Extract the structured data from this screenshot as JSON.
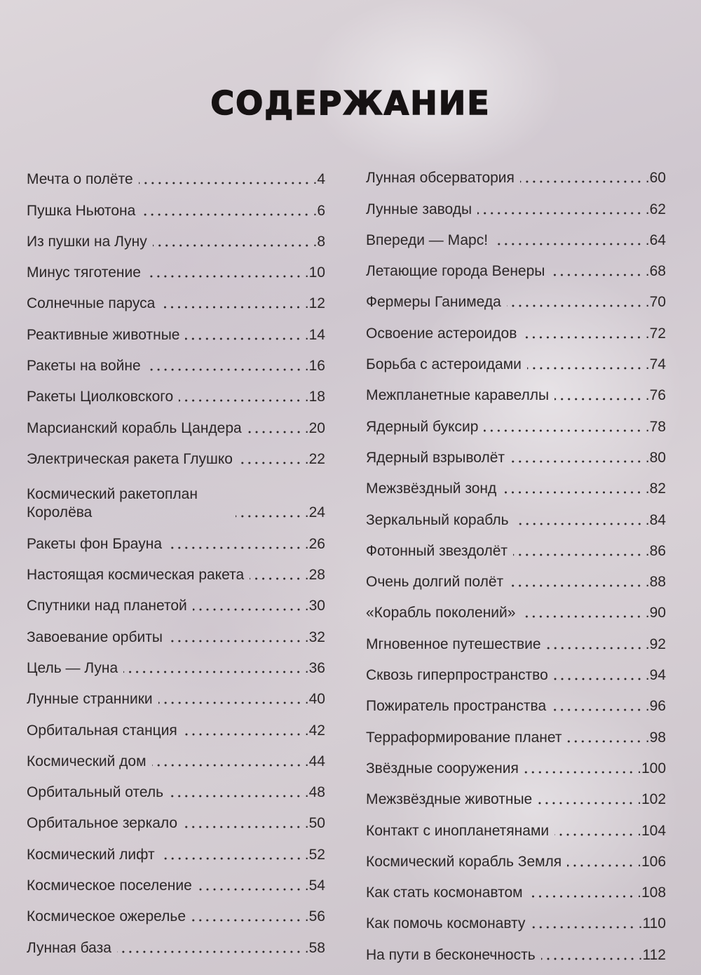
{
  "title": "СОДЕРЖАНИЕ",
  "left": [
    {
      "title": "Мечта о полёте",
      "page": ".4"
    },
    {
      "title": "Пушка Ньютона",
      "page": ".6"
    },
    {
      "title": "Из пушки на Луну",
      "page": ".8"
    },
    {
      "title": "Минус тяготение",
      "page": ".10"
    },
    {
      "title": "Солнечные паруса",
      "page": ".12"
    },
    {
      "title": "Реактивные животные",
      "page": ".14"
    },
    {
      "title": "Ракеты на войне",
      "page": ".16"
    },
    {
      "title": "Ракеты Циолковского",
      "page": ".18"
    },
    {
      "title": "Марсианский корабль Цандера",
      "page": ".20"
    },
    {
      "title": "Электрическая ракета Глушко",
      "page": ".22"
    },
    {
      "title": "Космический ракетоплан Королёва",
      "page": ".24"
    },
    {
      "title": "Ракеты фон Брауна",
      "page": ".26"
    },
    {
      "title": "Настоящая космическая ракета",
      "page": ".28"
    },
    {
      "title": "Спутники над планетой",
      "page": ".30"
    },
    {
      "title": "Завоевание орбиты",
      "page": ".32"
    },
    {
      "title": "Цель — Луна",
      "page": ".36"
    },
    {
      "title": "Лунные странники",
      "page": ".40"
    },
    {
      "title": "Орбитальная станция",
      "page": ".42"
    },
    {
      "title": "Космический дом",
      "page": ".44"
    },
    {
      "title": "Орбитальный отель",
      "page": ".48"
    },
    {
      "title": "Орбитальное зеркало",
      "page": ".50"
    },
    {
      "title": "Космический лифт",
      "page": ".52"
    },
    {
      "title": "Космическое поселение",
      "page": ".54"
    },
    {
      "title": "Космическое ожерелье",
      "page": ".56"
    },
    {
      "title": "Лунная база",
      "page": ".58"
    }
  ],
  "right": [
    {
      "title": "Лунная обсерватория",
      "page": ".60"
    },
    {
      "title": "Лунные заводы",
      "page": ".62"
    },
    {
      "title": "Впереди — Марс!",
      "page": ".64"
    },
    {
      "title": "Летающие города Венеры",
      "page": ".68"
    },
    {
      "title": "Фермеры Ганимеда",
      "page": ".70"
    },
    {
      "title": "Освоение астероидов",
      "page": ".72"
    },
    {
      "title": "Борьба с астероидами",
      "page": ".74"
    },
    {
      "title": "Межпланетные каравеллы",
      "page": ".76"
    },
    {
      "title": "Ядерный буксир",
      "page": ".78"
    },
    {
      "title": "Ядерный взрыволёт",
      "page": ".80"
    },
    {
      "title": "Межзвёздный зонд",
      "page": ".82"
    },
    {
      "title": "Зеркальный корабль",
      "page": ".84"
    },
    {
      "title": "Фотонный звездолёт",
      "page": ".86"
    },
    {
      "title": "Очень долгий полёт",
      "page": ".88"
    },
    {
      "title": "«Корабль поколений»",
      "page": ".90"
    },
    {
      "title": "Мгновенное путешествие",
      "page": ".92"
    },
    {
      "title": "Сквозь гиперпространство",
      "page": ".94"
    },
    {
      "title": "Пожиратель пространства",
      "page": ".96"
    },
    {
      "title": "Терраформирование планет",
      "page": ".98"
    },
    {
      "title": "Звёздные сооружения",
      "page": ".100"
    },
    {
      "title": "Межзвёздные животные",
      "page": ".102"
    },
    {
      "title": "Контакт с инопланетянами",
      "page": ".104"
    },
    {
      "title": "Космический корабль Земля",
      "page": ".106"
    },
    {
      "title": "Как стать космонавтом",
      "page": ".108"
    },
    {
      "title": "Как помочь космонавту",
      "page": ".110"
    },
    {
      "title": "На пути в бесконечность",
      "page": ".112"
    }
  ]
}
